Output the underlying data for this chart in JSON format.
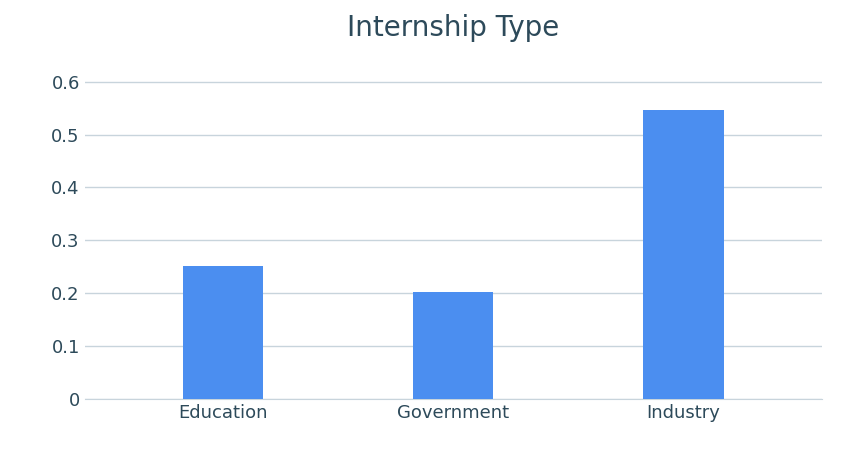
{
  "title": "Internship Type",
  "categories": [
    "Education",
    "Government",
    "Industry"
  ],
  "values": [
    0.252,
    0.202,
    0.547
  ],
  "bar_color": "#4B8EF0",
  "background_color": "#ffffff",
  "ylim": [
    0,
    0.65
  ],
  "yticks": [
    0,
    0.1,
    0.2,
    0.3,
    0.4,
    0.5,
    0.6
  ],
  "title_fontsize": 20,
  "title_color": "#2d4a5a",
  "tick_label_color": "#2d4a5a",
  "tick_label_fontsize": 13,
  "grid_color": "#c8d4dc",
  "bar_width": 0.35
}
